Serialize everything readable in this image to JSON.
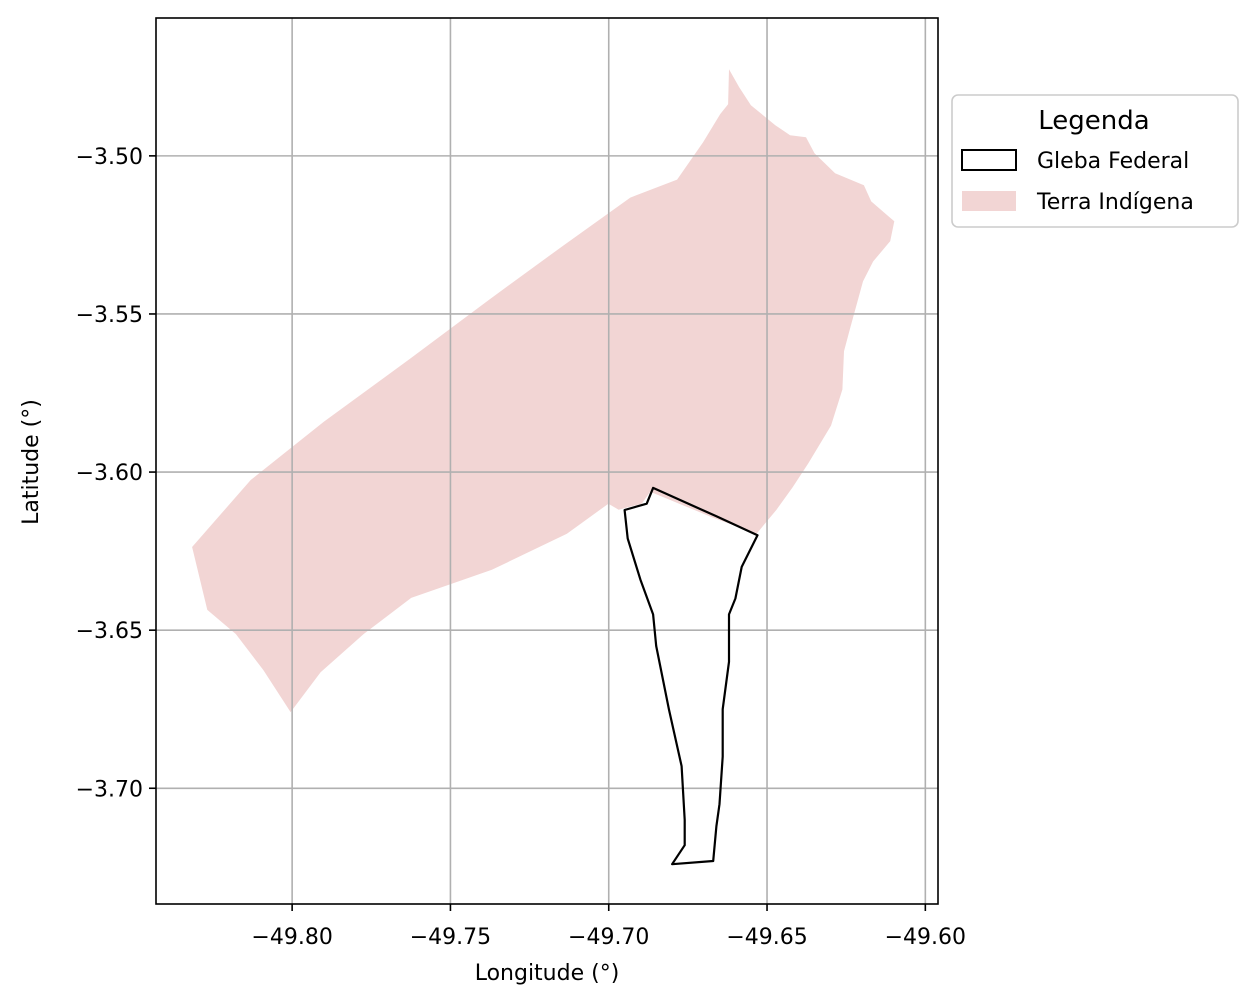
{
  "chart_data": {
    "type": "map",
    "xlabel": "Longitude (°)",
    "ylabel": "Latitude (°)",
    "xlim": [
      -49.843,
      -49.596
    ],
    "ylim": [
      -3.7366,
      -3.4564
    ],
    "x_ticks": [
      {
        "value": -49.8,
        "label": "−49.80"
      },
      {
        "value": -49.75,
        "label": "−49.75"
      },
      {
        "value": -49.7,
        "label": "−49.70"
      },
      {
        "value": -49.65,
        "label": "−49.65"
      },
      {
        "value": -49.6,
        "label": "−49.60"
      }
    ],
    "y_ticks": [
      {
        "value": -3.5,
        "label": "−3.50"
      },
      {
        "value": -3.55,
        "label": "−3.55"
      },
      {
        "value": -3.6,
        "label": "−3.60"
      },
      {
        "value": -3.65,
        "label": "−3.65"
      },
      {
        "value": -3.7,
        "label": "−3.70"
      }
    ],
    "grid": true,
    "legend": {
      "title": "Legenda",
      "placement": "outside-right-top",
      "entries": [
        "Gleba Federal",
        "Terra Indígena"
      ]
    },
    "layers": [
      {
        "name": "Terra Indígena",
        "style": "fill",
        "color": "#f2d5d4",
        "coordinates": [
          [
            -49.8316,
            -3.6237
          ],
          [
            -49.8131,
            -3.6025
          ],
          [
            -49.79,
            -3.5841
          ],
          [
            -49.7624,
            -3.5639
          ],
          [
            -49.7378,
            -3.5455
          ],
          [
            -49.7144,
            -3.5284
          ],
          [
            -49.6932,
            -3.5132
          ],
          [
            -49.6784,
            -3.5075
          ],
          [
            -49.6702,
            -3.4957
          ],
          [
            -49.6648,
            -3.4868
          ],
          [
            -49.6623,
            -3.4837
          ],
          [
            -49.662,
            -3.4726
          ],
          [
            -49.6588,
            -3.4783
          ],
          [
            -49.6551,
            -3.484
          ],
          [
            -49.6474,
            -3.4903
          ],
          [
            -49.6427,
            -3.4935
          ],
          [
            -49.6377,
            -3.4941
          ],
          [
            -49.635,
            -3.4992
          ],
          [
            -49.6285,
            -3.5055
          ],
          [
            -49.6194,
            -3.5093
          ],
          [
            -49.6171,
            -3.5144
          ],
          [
            -49.6098,
            -3.5207
          ],
          [
            -49.6111,
            -3.527
          ],
          [
            -49.6165,
            -3.5334
          ],
          [
            -49.6197,
            -3.5397
          ],
          [
            -49.6237,
            -3.5543
          ],
          [
            -49.6257,
            -3.5618
          ],
          [
            -49.6262,
            -3.5739
          ],
          [
            -49.6298,
            -3.5853
          ],
          [
            -49.637,
            -3.5973
          ],
          [
            -49.642,
            -3.6049
          ],
          [
            -49.647,
            -3.6119
          ],
          [
            -49.6533,
            -3.6195
          ],
          [
            -49.6669,
            -3.6145
          ],
          [
            -49.6869,
            -3.6062
          ],
          [
            -49.6896,
            -3.61
          ],
          [
            -49.6969,
            -3.6119
          ],
          [
            -49.7001,
            -3.61
          ],
          [
            -49.7132,
            -3.6195
          ],
          [
            -49.7369,
            -3.6309
          ],
          [
            -49.7624,
            -3.6398
          ],
          [
            -49.7774,
            -3.6512
          ],
          [
            -49.791,
            -3.6633
          ],
          [
            -49.8005,
            -3.6759
          ],
          [
            -49.8091,
            -3.6626
          ],
          [
            -49.8178,
            -3.6512
          ],
          [
            -49.8268,
            -3.6436
          ]
        ]
      },
      {
        "name": "Gleba Federal",
        "style": "outline",
        "color": "#000000",
        "coordinates": [
          [
            -49.686,
            -3.605
          ],
          [
            -49.666,
            -3.614
          ],
          [
            -49.653,
            -3.62
          ],
          [
            -49.658,
            -3.63
          ],
          [
            -49.66,
            -3.64
          ],
          [
            -49.662,
            -3.645
          ],
          [
            -49.662,
            -3.66
          ],
          [
            -49.664,
            -3.675
          ],
          [
            -49.664,
            -3.69
          ],
          [
            -49.665,
            -3.705
          ],
          [
            -49.666,
            -3.712
          ],
          [
            -49.667,
            -3.723
          ],
          [
            -49.68,
            -3.724
          ],
          [
            -49.676,
            -3.718
          ],
          [
            -49.676,
            -3.71
          ],
          [
            -49.677,
            -3.693
          ],
          [
            -49.681,
            -3.675
          ],
          [
            -49.685,
            -3.655
          ],
          [
            -49.686,
            -3.645
          ],
          [
            -49.69,
            -3.634
          ],
          [
            -49.694,
            -3.621
          ],
          [
            -49.695,
            -3.612
          ],
          [
            -49.688,
            -3.61
          ]
        ]
      }
    ]
  }
}
